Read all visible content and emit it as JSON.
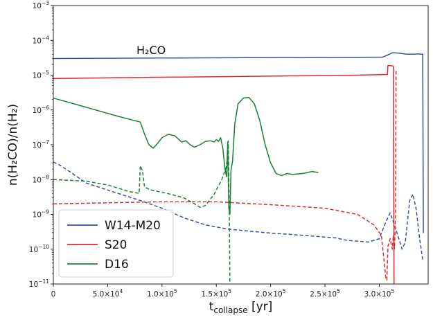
{
  "chart_data": {
    "type": "line",
    "annotation": "H₂CO",
    "xlabel": {
      "main": "t",
      "sub": "collapse",
      "tail": " [yr]"
    },
    "ylabel": "n(H₂CO)/n(H₂)",
    "x_axis": {
      "range": [
        0,
        345000
      ],
      "ticks": [
        {
          "value": 0,
          "mantissa": "0",
          "exp": ""
        },
        {
          "value": 50000,
          "mantissa": "5.0×10",
          "exp": "4"
        },
        {
          "value": 100000,
          "mantissa": "1.0×10",
          "exp": "5"
        },
        {
          "value": 150000,
          "mantissa": "1.5×10",
          "exp": "5"
        },
        {
          "value": 200000,
          "mantissa": "2.0×10",
          "exp": "5"
        },
        {
          "value": 250000,
          "mantissa": "2.5×10",
          "exp": "5"
        },
        {
          "value": 300000,
          "mantissa": "3.0×10",
          "exp": "5"
        }
      ]
    },
    "y_axis": {
      "scale": "log",
      "range": [
        1e-11,
        0.001
      ],
      "ticks": [
        {
          "value": 1e-11,
          "base": "10",
          "exp": "−11"
        },
        {
          "value": 1e-10,
          "base": "10",
          "exp": "−10"
        },
        {
          "value": 1e-09,
          "base": "10",
          "exp": "−9"
        },
        {
          "value": 1e-08,
          "base": "10",
          "exp": "−8"
        },
        {
          "value": 1e-07,
          "base": "10",
          "exp": "−7"
        },
        {
          "value": 1e-06,
          "base": "10",
          "exp": "−6"
        },
        {
          "value": 1e-05,
          "base": "10",
          "exp": "−5"
        },
        {
          "value": 0.0001,
          "base": "10",
          "exp": "−4"
        },
        {
          "value": 0.001,
          "base": "10",
          "exp": "−3"
        }
      ]
    },
    "grid": false,
    "legend_position": "bottom-left",
    "legend": [
      {
        "label": "W14-M20",
        "color": "#3a4fa0"
      },
      {
        "label": "S20",
        "color": "#e0282d"
      },
      {
        "label": "D16",
        "color": "#1a7f37"
      }
    ],
    "series": [
      {
        "name": "W14-M20",
        "style": "solid",
        "color": "#3a4fa0",
        "points": [
          [
            0,
            3e-05
          ],
          [
            100000,
            3.1e-05
          ],
          [
            200000,
            3.2e-05
          ],
          [
            280000,
            3.25e-05
          ],
          [
            303000,
            3.3e-05
          ],
          [
            308000,
            3.8e-05
          ],
          [
            312000,
            4.4e-05
          ],
          [
            318000,
            4.3e-05
          ],
          [
            325000,
            4e-05
          ],
          [
            333000,
            4e-05
          ],
          [
            335000,
            4.1e-05
          ],
          [
            338000,
            4e-05
          ],
          [
            340000,
            4e-05
          ],
          [
            340300,
            1e-07
          ],
          [
            340600,
            3e-10
          ],
          [
            341000,
            3e-10
          ]
        ]
      },
      {
        "name": "S20",
        "style": "solid",
        "color": "#e0282d",
        "points": [
          [
            0,
            8e-06
          ],
          [
            100000,
            8.7e-06
          ],
          [
            200000,
            9.4e-06
          ],
          [
            280000,
            1e-05
          ],
          [
            307500,
            1.05e-05
          ],
          [
            308000,
            1.9e-05
          ],
          [
            312000,
            1.85e-05
          ],
          [
            313000,
            1.8e-05
          ],
          [
            313300,
            1e-08
          ],
          [
            313600,
            1e-11
          ]
        ]
      },
      {
        "name": "D16",
        "style": "solid",
        "color": "#1a7f37",
        "points": [
          [
            0,
            2.2e-06
          ],
          [
            30000,
            1.2e-06
          ],
          [
            60000,
            6.5e-07
          ],
          [
            80000,
            4.5e-07
          ],
          [
            84000,
            2e-07
          ],
          [
            88000,
            1e-07
          ],
          [
            92000,
            8e-08
          ],
          [
            96000,
            1.1e-07
          ],
          [
            100000,
            1.6e-07
          ],
          [
            106000,
            2e-07
          ],
          [
            112000,
            1.8e-07
          ],
          [
            118000,
            1.2e-07
          ],
          [
            122000,
            1.3e-07
          ],
          [
            126000,
            1e-07
          ],
          [
            130000,
            8.5e-08
          ],
          [
            135000,
            1e-07
          ],
          [
            140000,
            1.25e-07
          ],
          [
            145000,
            1.3e-07
          ],
          [
            148000,
            1.2e-07
          ],
          [
            150000,
            1.4e-07
          ],
          [
            152000,
            1.25e-07
          ],
          [
            154000,
            1.6e-07
          ],
          [
            156000,
            8e-08
          ],
          [
            158000,
            2e-08
          ],
          [
            159500,
            1.2e-08
          ],
          [
            160500,
            1.2e-07
          ],
          [
            161500,
            1.5e-09
          ],
          [
            162500,
            1e-09
          ],
          [
            163500,
            1.8e-08
          ],
          [
            165000,
            3.5e-08
          ],
          [
            167000,
            4e-07
          ],
          [
            170000,
            1.5e-06
          ],
          [
            175000,
            2.2e-06
          ],
          [
            180000,
            2.3e-06
          ],
          [
            185000,
            1.5e-06
          ],
          [
            190000,
            5e-07
          ],
          [
            195000,
            1e-07
          ],
          [
            200000,
            3e-08
          ],
          [
            205000,
            1.5e-08
          ],
          [
            210000,
            1.3e-08
          ],
          [
            215000,
            1.5e-08
          ],
          [
            220000,
            1.4e-08
          ],
          [
            230000,
            1.5e-08
          ],
          [
            238000,
            1.7e-08
          ],
          [
            244000,
            1.6e-08
          ]
        ]
      },
      {
        "name": "W14-M20 (dashed)",
        "style": "dashed",
        "color": "#3a4fa0",
        "points": [
          [
            0,
            3.2e-08
          ],
          [
            5000,
            2.7e-08
          ],
          [
            15000,
            1.7e-08
          ],
          [
            30000,
            8e-09
          ],
          [
            50000,
            5e-09
          ],
          [
            80000,
            2.5e-09
          ],
          [
            100000,
            1.5e-09
          ],
          [
            120000,
            8e-10
          ],
          [
            140000,
            5e-10
          ],
          [
            160000,
            3.8e-10
          ],
          [
            180000,
            3.3e-10
          ],
          [
            200000,
            2.9e-10
          ],
          [
            230000,
            2.5e-10
          ],
          [
            260000,
            2.1e-10
          ],
          [
            270000,
            1.8e-10
          ],
          [
            290000,
            1.6e-10
          ],
          [
            300000,
            2e-10
          ],
          [
            306000,
            6e-10
          ],
          [
            310000,
            1.1e-09
          ],
          [
            314000,
            5e-10
          ],
          [
            318000,
            2e-10
          ],
          [
            321000,
            1e-10
          ],
          [
            324000,
            1.6e-10
          ],
          [
            328000,
            2.5e-09
          ],
          [
            331000,
            3.8e-09
          ],
          [
            334000,
            1.4e-09
          ],
          [
            337000,
            2.2e-10
          ],
          [
            340000,
            5e-11
          ]
        ]
      },
      {
        "name": "S20 (dashed)",
        "style": "dashed",
        "color": "#e0282d",
        "points": [
          [
            0,
            2e-09
          ],
          [
            50000,
            2.15e-09
          ],
          [
            100000,
            2.3e-09
          ],
          [
            150000,
            2.3e-09
          ],
          [
            200000,
            1.9e-09
          ],
          [
            250000,
            1.5e-09
          ],
          [
            280000,
            1e-09
          ],
          [
            295000,
            5e-10
          ],
          [
            302000,
            2.5e-10
          ],
          [
            306000,
            1.5e-11
          ],
          [
            307000,
            1.3e-11
          ],
          [
            308000,
            1.2e-10
          ],
          [
            310000,
            2e-10
          ],
          [
            312000,
            1e-10
          ],
          [
            313000,
            2.5e-10
          ],
          [
            314000,
            1e-10
          ],
          [
            315000,
            1e-09
          ],
          [
            315500,
            1.5e-05
          ]
        ]
      },
      {
        "name": "D16 (dashed)",
        "style": "dashed",
        "color": "#1a7f37",
        "points": [
          [
            0,
            1e-08
          ],
          [
            30000,
            9e-09
          ],
          [
            50000,
            7e-09
          ],
          [
            70000,
            4.5e-09
          ],
          [
            79000,
            4e-09
          ],
          [
            80000,
            2.5e-08
          ],
          [
            82000,
            1.8e-08
          ],
          [
            84000,
            6e-09
          ],
          [
            90000,
            5e-09
          ],
          [
            105000,
            4e-09
          ],
          [
            120000,
            3e-09
          ],
          [
            130000,
            2e-09
          ],
          [
            135000,
            1.6e-09
          ],
          [
            140000,
            1.8e-09
          ],
          [
            148000,
            3.8e-09
          ],
          [
            155000,
            1e-08
          ],
          [
            159000,
            2.2e-08
          ],
          [
            160500,
            5e-08
          ],
          [
            161000,
            1.3e-07
          ],
          [
            162000,
            1e-09
          ],
          [
            162500,
            1e-11
          ]
        ]
      }
    ]
  }
}
